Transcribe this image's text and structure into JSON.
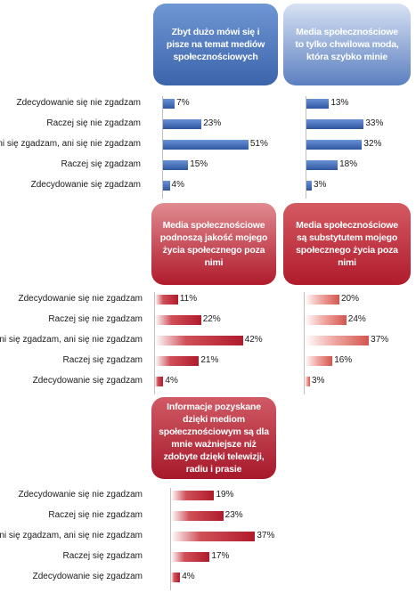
{
  "chart_data": [
    {
      "type": "bar",
      "title": "Zbyt dużo mówi się i pisze na temat mediów społecznościowych",
      "categories": [
        "Zdecydowanie się nie zgadzam",
        "Raczej się nie zgadzam",
        "Ani się zgadzam, ani się nie zgadzam",
        "Raczej się zgadzam",
        "Zdecydowanie się zgadzam"
      ],
      "values": [
        7,
        23,
        51,
        15,
        4
      ],
      "value_labels": [
        "7%",
        "23%",
        "51%",
        "15%",
        "4%"
      ],
      "color": "#3c64ab"
    },
    {
      "type": "bar",
      "title": "Media społecznościowe to tylko chwilowa moda, która szybko minie",
      "categories": [
        "Zdecydowanie się nie zgadzam",
        "Raczej się nie zgadzam",
        "Ani się zgadzam, ani się nie zgadzam",
        "Raczej się zgadzam",
        "Zdecydowanie się zgadzam"
      ],
      "values": [
        13,
        33,
        32,
        18,
        3
      ],
      "value_labels": [
        "13%",
        "33%",
        "32%",
        "18%",
        "3%"
      ],
      "color": "#3c64ab"
    },
    {
      "type": "bar",
      "title": "Media społecznościowe podnoszą jakość mojego życia społecznego poza nimi",
      "categories": [
        "Zdecydowanie się nie zgadzam",
        "Raczej się nie zgadzam",
        "Ani się zgadzam, ani się nie zgadzam",
        "Raczej się zgadzam",
        "Zdecydowanie się zgadzam"
      ],
      "values": [
        11,
        22,
        42,
        21,
        4
      ],
      "value_labels": [
        "11%",
        "22%",
        "42%",
        "21%",
        "4%"
      ],
      "color": "#b01b2c"
    },
    {
      "type": "bar",
      "title": "Media społecznościowe są substytutem mojego społecznego życia poza nimi",
      "categories": [
        "Zdecydowanie się nie zgadzam",
        "Raczej się nie zgadzam",
        "Ani się zgadzam, ani się nie zgadzam",
        "Raczej się zgadzam",
        "Zdecydowanie się zgadzam"
      ],
      "values": [
        20,
        24,
        37,
        16,
        3
      ],
      "value_labels": [
        "20%",
        "24%",
        "37%",
        "16%",
        "3%"
      ],
      "color": "#d4564e"
    },
    {
      "type": "bar",
      "title": "Informacje pozyskane dzięki mediom społecznościowym są dla mnie ważniejsze niż zdobyte dzięki telewizji, radiu i prasie",
      "categories": [
        "Zdecydowanie się nie zgadzam",
        "Raczej się nie zgadzam",
        "Ani się zgadzam, ani się nie zgadzam",
        "Raczej się zgadzam",
        "Zdecydowanie się zgadzam"
      ],
      "values": [
        19,
        23,
        37,
        17,
        4
      ],
      "value_labels": [
        "19%",
        "23%",
        "37%",
        "17%",
        "4%"
      ],
      "color": "#b01b2c"
    }
  ]
}
